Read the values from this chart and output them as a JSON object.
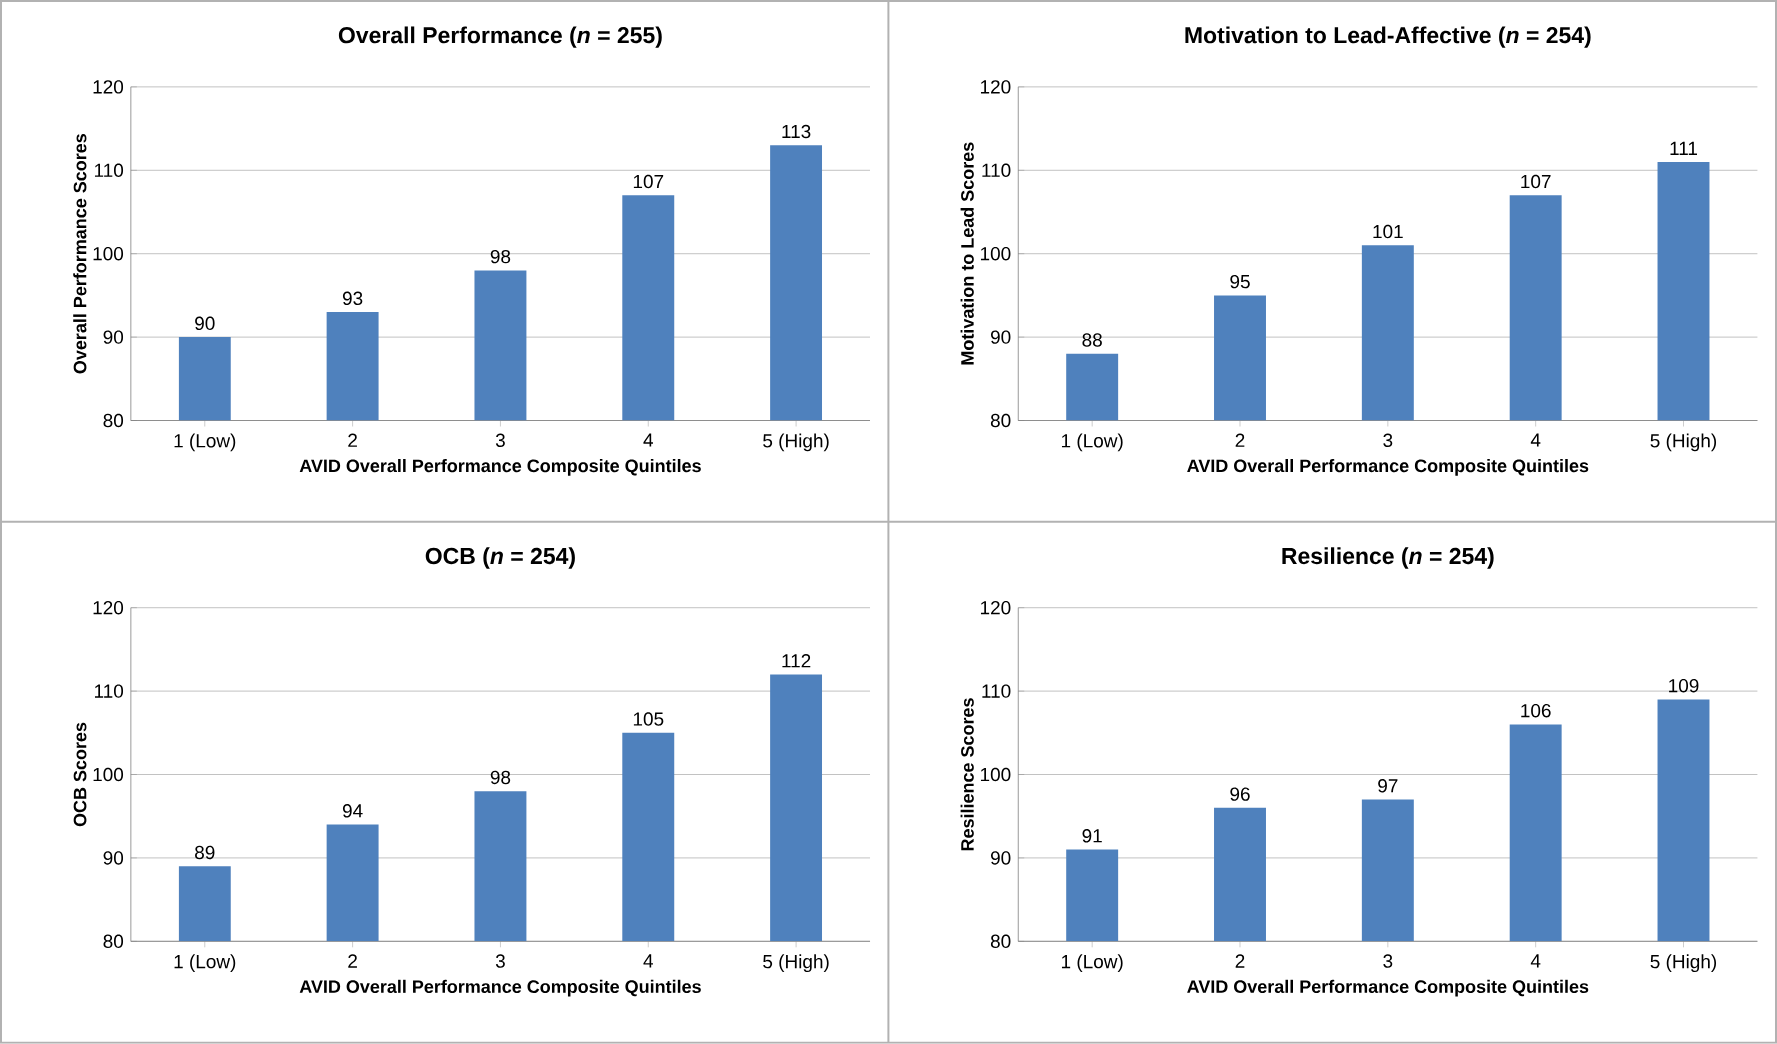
{
  "chart_data": [
    {
      "type": "bar",
      "title": "Overall Performance (*n* = 255)",
      "xlabel": "AVID Overall Performance Composite Quintiles",
      "ylabel": "Overall Performance Scores",
      "categories": [
        "1 (Low)",
        "2",
        "3",
        "4",
        "5 (High)"
      ],
      "values": [
        90,
        93,
        98,
        107,
        113
      ],
      "color": "#4f81bd",
      "ylim": [
        80,
        120
      ],
      "yticks": [
        80,
        90,
        100,
        110,
        120
      ],
      "grid": "y",
      "data_labels": true
    },
    {
      "type": "bar",
      "title": "Motivation to Lead-Affective (*n* = 254)",
      "xlabel": "AVID Overall Performance Composite Quintiles",
      "ylabel": "Motivation to Lead Scores",
      "categories": [
        "1 (Low)",
        "2",
        "3",
        "4",
        "5 (High)"
      ],
      "values": [
        88,
        95,
        101,
        107,
        111
      ],
      "color": "#4f81bd",
      "ylim": [
        80,
        120
      ],
      "yticks": [
        80,
        90,
        100,
        110,
        120
      ],
      "grid": "y",
      "data_labels": true
    },
    {
      "type": "bar",
      "title": "OCB (*n* = 254)",
      "xlabel": "AVID Overall Performance Composite Quintiles",
      "ylabel": "OCB Scores",
      "categories": [
        "1 (Low)",
        "2",
        "3",
        "4",
        "5 (High)"
      ],
      "values": [
        89,
        94,
        98,
        105,
        112
      ],
      "color": "#4f81bd",
      "ylim": [
        80,
        120
      ],
      "yticks": [
        80,
        90,
        100,
        110,
        120
      ],
      "grid": "y",
      "data_labels": true
    },
    {
      "type": "bar",
      "title": "Resilience (*n* = 254)",
      "xlabel": "AVID Overall Performance Composite Quintiles",
      "ylabel": "Resilience Scores",
      "categories": [
        "1 (Low)",
        "2",
        "3",
        "4",
        "5 (High)"
      ],
      "values": [
        91,
        96,
        97,
        106,
        109
      ],
      "color": "#4f81bd",
      "ylim": [
        80,
        120
      ],
      "yticks": [
        80,
        90,
        100,
        110,
        120
      ],
      "grid": "y",
      "data_labels": true
    }
  ]
}
